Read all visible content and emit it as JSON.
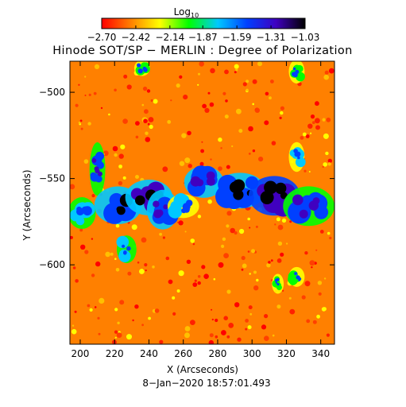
{
  "chart_data": {
    "type": "heatmap",
    "title": "Hinode SOT/SP − MERLIN : Degree of Polarization",
    "xlabel": "X (Arcseconds)",
    "ylabel": "Y (Arcseconds)",
    "xlim": [
      194,
      348
    ],
    "ylim": [
      -646,
      -482
    ],
    "x_ticks": [
      {
        "value": 200,
        "label": "200"
      },
      {
        "value": 220,
        "label": "220"
      },
      {
        "value": 240,
        "label": "240"
      },
      {
        "value": 260,
        "label": "260"
      },
      {
        "value": 280,
        "label": "280"
      },
      {
        "value": 300,
        "label": "300"
      },
      {
        "value": 320,
        "label": "320"
      },
      {
        "value": 340,
        "label": "340"
      }
    ],
    "y_ticks": [
      {
        "value": -500,
        "label": "−500"
      },
      {
        "value": -550,
        "label": "−550"
      },
      {
        "value": -600,
        "label": "−600"
      }
    ],
    "colorbar": {
      "label": "Log",
      "label_subscript": "10",
      "range": [
        -2.7,
        -1.03
      ],
      "ticks": [
        {
          "value": -2.7,
          "label": "−2.70"
        },
        {
          "value": -2.42,
          "label": "−2.42"
        },
        {
          "value": -2.14,
          "label": "−2.14"
        },
        {
          "value": -1.87,
          "label": "−1.87"
        },
        {
          "value": -1.59,
          "label": "−1.59"
        },
        {
          "value": -1.31,
          "label": "−1.31"
        },
        {
          "value": -1.03,
          "label": "−1.03"
        }
      ],
      "colormap": [
        "#ff0000",
        "#ff8000",
        "#ffff00",
        "#00ff00",
        "#00c8ff",
        "#0040ff",
        "#4000c0",
        "#000000"
      ]
    },
    "field_background": "#ff8000",
    "polarized_regions": [
      {
        "x": [
          206,
          214
        ],
        "y": [
          -558,
          -531
        ],
        "level": -1.45
      },
      {
        "x": [
          210,
          234
        ],
        "y": [
          -575,
          -556
        ],
        "level": -1.3
      },
      {
        "x": [
          228,
          252
        ],
        "y": [
          -570,
          -552
        ],
        "level": -1.2
      },
      {
        "x": [
          240,
          256
        ],
        "y": [
          -578,
          -558
        ],
        "level": -1.4
      },
      {
        "x": [
          194,
          208
        ],
        "y": [
          -578,
          -562
        ],
        "level": -1.6
      },
      {
        "x": [
          222,
          232
        ],
        "y": [
          -598,
          -584
        ],
        "level": -1.6
      },
      {
        "x": [
          262,
          282
        ],
        "y": [
          -560,
          -544
        ],
        "level": -1.35
      },
      {
        "x": [
          280,
          306
        ],
        "y": [
          -566,
          -548
        ],
        "level": -1.25
      },
      {
        "x": [
          300,
          326
        ],
        "y": [
          -570,
          -550
        ],
        "level": -1.15
      },
      {
        "x": [
          320,
          346
        ],
        "y": [
          -576,
          -556
        ],
        "level": -1.45
      },
      {
        "x": [
          252,
          268
        ],
        "y": [
          -572,
          -560
        ],
        "level": -1.7
      },
      {
        "x": [
          322,
          330
        ],
        "y": [
          -545,
          -530
        ],
        "level": -1.7
      },
      {
        "x": [
          322,
          330
        ],
        "y": [
          -612,
          -602
        ],
        "level": -1.8
      },
      {
        "x": [
          312,
          318
        ],
        "y": [
          -616,
          -606
        ],
        "level": -1.8
      },
      {
        "x": [
          232,
          240
        ],
        "y": [
          -490,
          -482
        ],
        "level": -1.8
      },
      {
        "x": [
          322,
          330
        ],
        "y": [
          -494,
          -482
        ],
        "level": -1.8
      }
    ],
    "speckle_count": 340,
    "grid": false,
    "legend": "none"
  },
  "timestamp": "8−Jan−2020 18:57:01.493"
}
